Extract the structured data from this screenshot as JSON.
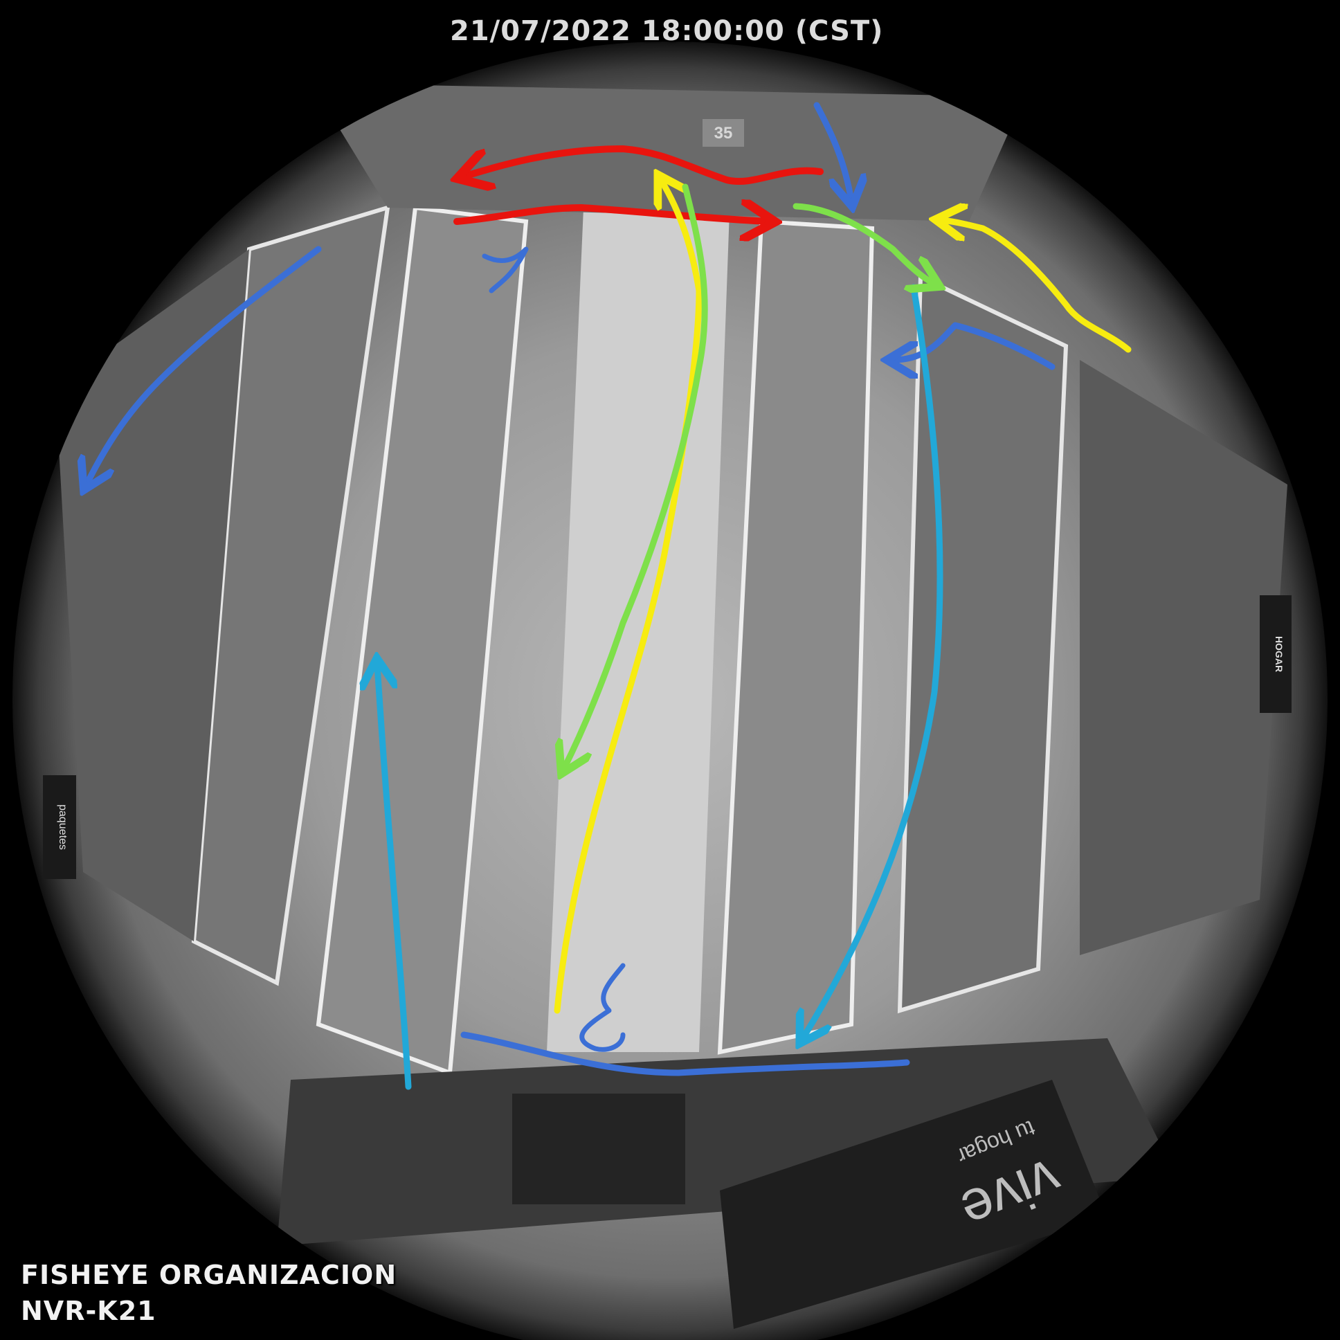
{
  "overlay": {
    "timestamp": "21/07/2022 18:00:00 (CST)",
    "camera_name": "FISHEYE ORGANIZACION",
    "camera_id": "NVR-K21"
  },
  "scene": {
    "aisle_sign": "35",
    "side_sign": "HOGAR",
    "packages_sign": "paquetes",
    "floor_mat_brand": "vive",
    "floor_mat_tagline": "tu hogar"
  },
  "path_colors": {
    "red": "#e8140e",
    "yellow": "#f7ec10",
    "green": "#7ee04a",
    "cyan": "#22a8d8",
    "blue": "#3b6fd6"
  }
}
